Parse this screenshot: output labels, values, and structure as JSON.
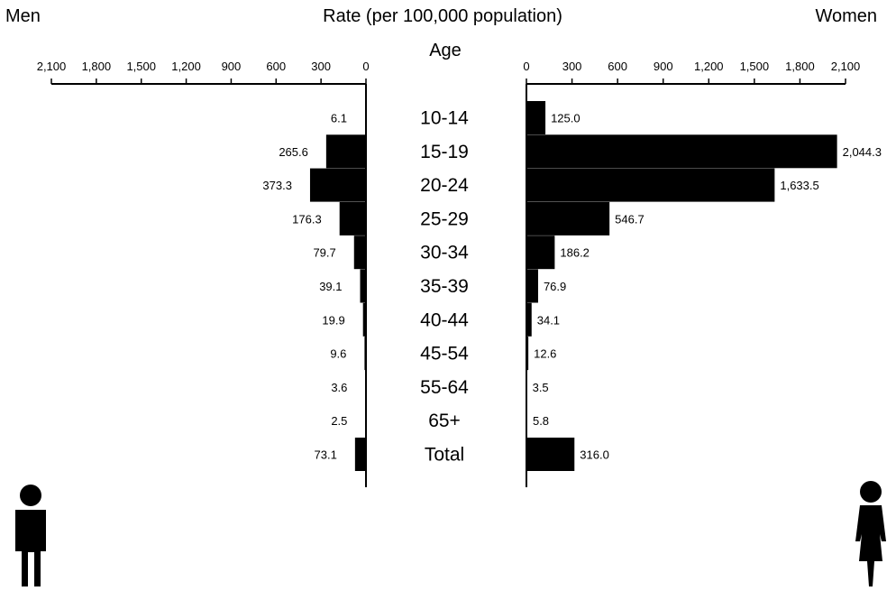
{
  "header": {
    "left": "Men",
    "center": "Rate (per 100,000 population)",
    "right": "Women",
    "age_label": "Age"
  },
  "chart_data": {
    "type": "bar",
    "orientation": "horizontal-butterfly",
    "xlabel": "Rate (per 100,000 population)",
    "ylabel": "Age",
    "xlim": [
      0,
      2100
    ],
    "ticks": [
      0,
      300,
      600,
      900,
      1200,
      1500,
      1800,
      2100
    ],
    "tick_labels": [
      "0",
      "300",
      "600",
      "900",
      "1,200",
      "1,500",
      "1,800",
      "2,100"
    ],
    "categories": [
      "10-14",
      "15-19",
      "20-24",
      "25-29",
      "30-34",
      "35-39",
      "40-44",
      "45-54",
      "55-64",
      "65+",
      "Total"
    ],
    "series": [
      {
        "name": "Men",
        "values": [
          6.1,
          265.6,
          373.3,
          176.3,
          79.7,
          39.1,
          19.9,
          9.6,
          3.6,
          2.5,
          73.1
        ],
        "labels": [
          "6.1",
          "265.6",
          "373.3",
          "176.3",
          "79.7",
          "39.1",
          "19.9",
          "9.6",
          "3.6",
          "2.5",
          "73.1"
        ]
      },
      {
        "name": "Women",
        "values": [
          125.0,
          2044.3,
          1633.5,
          546.7,
          186.2,
          76.9,
          34.1,
          12.6,
          3.5,
          5.8,
          316.0
        ],
        "labels": [
          "125.0",
          "2,044.3",
          "1,633.5",
          "546.7",
          "186.2",
          "76.9",
          "34.1",
          "12.6",
          "3.5",
          "5.8",
          "316.0"
        ]
      }
    ],
    "bar_color": "#000000",
    "grid": false
  },
  "icons": {
    "man": "man-silhouette-icon",
    "woman": "woman-silhouette-icon"
  }
}
